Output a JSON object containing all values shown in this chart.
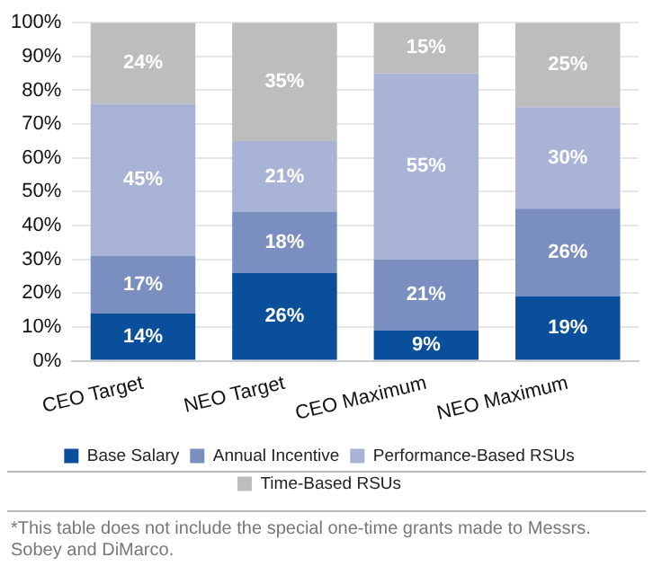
{
  "chart_data": {
    "type": "bar",
    "stacked": true,
    "categories": [
      "CEO Target",
      "NEO Target",
      "CEO Maximum",
      "NEO Maximum"
    ],
    "series": [
      {
        "name": "Base Salary",
        "color": "#0a4f9c",
        "values": [
          14,
          26,
          9,
          19
        ],
        "value_labels": [
          "14%",
          "26%",
          "9%",
          "19%"
        ]
      },
      {
        "name": "Annual Incentive",
        "color": "#7a8ec0",
        "values": [
          17,
          18,
          21,
          26
        ],
        "value_labels": [
          "17%",
          "18%",
          "21%",
          "26%"
        ]
      },
      {
        "name": "Performance-Based RSUs",
        "color": "#a8b3d6",
        "values": [
          45,
          21,
          55,
          30
        ],
        "value_labels": [
          "45%",
          "21%",
          "55%",
          "30%"
        ]
      },
      {
        "name": "Time-Based RSUs",
        "color": "#bdbdbd",
        "values": [
          24,
          35,
          15,
          25
        ],
        "value_labels": [
          "24%",
          "35%",
          "15%",
          "25%"
        ]
      }
    ],
    "ylim": [
      0,
      100
    ],
    "yticks": [
      {
        "value": 0,
        "label": "0%"
      },
      {
        "value": 10,
        "label": "10%"
      },
      {
        "value": 20,
        "label": "20%"
      },
      {
        "value": 30,
        "label": "30%"
      },
      {
        "value": 40,
        "label": "40%"
      },
      {
        "value": 50,
        "label": "50%"
      },
      {
        "value": 60,
        "label": "60%"
      },
      {
        "value": 70,
        "label": "70%"
      },
      {
        "value": 80,
        "label": "80%"
      },
      {
        "value": 90,
        "label": "90%"
      },
      {
        "value": 100,
        "label": "100%"
      }
    ],
    "grid": "y",
    "legend": "bottom",
    "annotations": [
      "*This table does not include the special one-time grants made to Messrs. Sobey and DiMarco."
    ]
  }
}
